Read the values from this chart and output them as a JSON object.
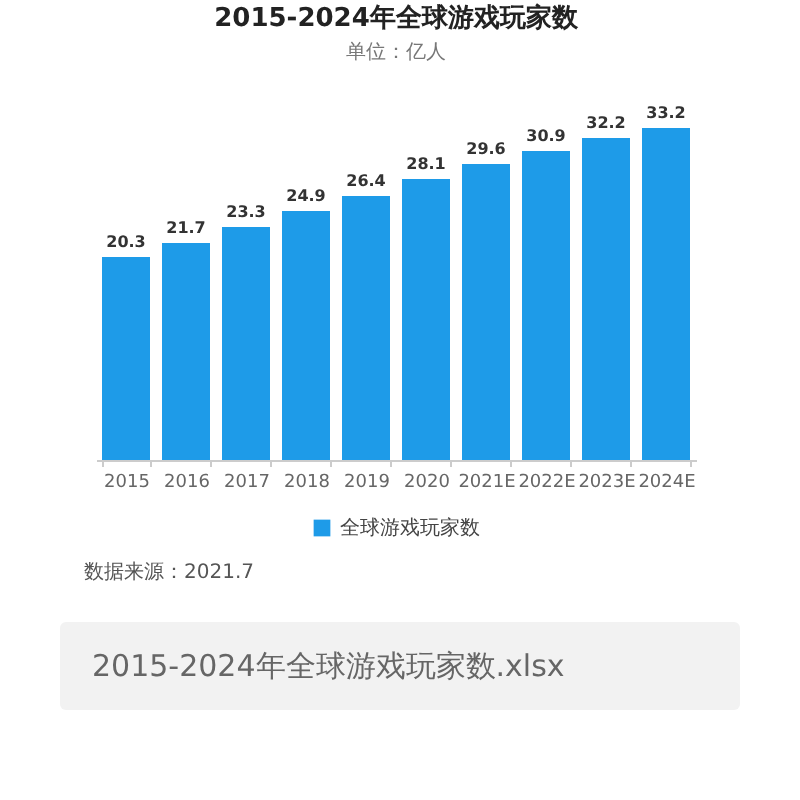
{
  "chart_data": {
    "type": "bar",
    "title": "2015-2024年全球游戏玩家数",
    "subtitle": "单位：亿人",
    "categories": [
      "2015",
      "2016",
      "2017",
      "2018",
      "2019",
      "2020",
      "2021E",
      "2022E",
      "2023E",
      "2024E"
    ],
    "series": [
      {
        "name": "全球游戏玩家数",
        "color": "#1e9be8",
        "values": [
          20.3,
          21.7,
          23.3,
          24.9,
          26.4,
          28.1,
          29.6,
          30.9,
          32.2,
          33.2
        ]
      }
    ],
    "data_labels": true,
    "grid": false,
    "legend": "bottom",
    "tick_labels": "x",
    "annotations": [
      "数据来源：2021.7",
      "2015-2024年全球游戏玩家数.xlsx"
    ]
  }
}
